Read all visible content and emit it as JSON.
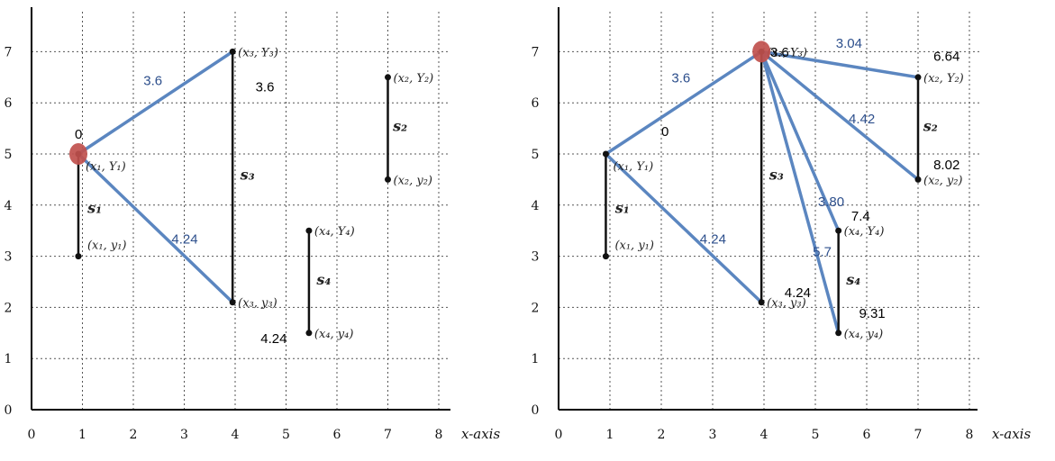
{
  "panels": [
    {
      "id": "left",
      "x_ticks": [
        "0",
        "1",
        "2",
        "3",
        "4",
        "5",
        "6",
        "7",
        "8"
      ],
      "y_ticks": [
        "0",
        "1",
        "2",
        "3",
        "4",
        "5",
        "6",
        "7"
      ],
      "x_axis_label": "x-axis",
      "points": [
        {
          "id": "A",
          "x": 0.92,
          "y": 5,
          "label": "(x₁, Y₁)",
          "label_pos": "right-below"
        },
        {
          "id": "a",
          "x": 0.92,
          "y": 3,
          "label": "(x₁, y₁)",
          "label_pos": "right-above"
        },
        {
          "id": "B",
          "x": 7,
          "y": 6.5,
          "label": "(x₂, Y₂)",
          "label_pos": "right"
        },
        {
          "id": "b",
          "x": 7,
          "y": 4.5,
          "label": "(x₂, y₂)",
          "label_pos": "right"
        },
        {
          "id": "C",
          "x": 3.95,
          "y": 7,
          "label": "(x₃, Y₃)",
          "label_pos": "right"
        },
        {
          "id": "c",
          "x": 3.95,
          "y": 2.1,
          "label": "(x₃, y₃)",
          "label_pos": "right"
        },
        {
          "id": "D",
          "x": 5.45,
          "y": 3.5,
          "label": "(x₄, Y₄)",
          "label_pos": "right"
        },
        {
          "id": "d",
          "x": 5.45,
          "y": 1.5,
          "label": "(x₄, y₄)",
          "label_pos": "right"
        }
      ],
      "segments": [
        {
          "from": "A",
          "to": "a",
          "label": "s1"
        },
        {
          "from": "B",
          "to": "b",
          "label": "s2"
        },
        {
          "from": "C",
          "to": "c",
          "label": "s3"
        },
        {
          "from": "D",
          "to": "d",
          "label": "s4"
        }
      ],
      "segment_labels": [
        {
          "text": "s₁",
          "x": 1.1,
          "y": 3.85
        },
        {
          "text": "s₂",
          "x": 7.1,
          "y": 5.45
        },
        {
          "text": "s₃",
          "x": 4.1,
          "y": 4.5
        },
        {
          "text": "s₄",
          "x": 5.6,
          "y": 2.45
        }
      ],
      "source": "A",
      "edges": [
        {
          "from": "A",
          "to": "C"
        },
        {
          "from": "A",
          "to": "c"
        }
      ],
      "blue_labels": [
        {
          "text": "3.6",
          "x": 2.2,
          "y": 6.35
        },
        {
          "text": "4.24",
          "x": 2.75,
          "y": 3.25
        }
      ],
      "black_labels": [
        {
          "text": "0",
          "x": 0.85,
          "y": 5.3
        },
        {
          "text": "3.6",
          "x": 4.4,
          "y": 6.22
        },
        {
          "text": "4.24",
          "x": 4.5,
          "y": 1.3
        }
      ]
    },
    {
      "id": "right",
      "x_ticks": [
        "0",
        "1",
        "2",
        "3",
        "4",
        "5",
        "6",
        "7",
        "8"
      ],
      "y_ticks": [
        "0",
        "1",
        "2",
        "3",
        "4",
        "5",
        "6",
        "7"
      ],
      "x_axis_label": "x-axis",
      "points": [
        {
          "id": "A",
          "x": 0.92,
          "y": 5,
          "label": "(x₁, Y₁)",
          "label_pos": "right-below"
        },
        {
          "id": "a",
          "x": 0.92,
          "y": 3,
          "label": "(x₁, y₁)",
          "label_pos": "right-above"
        },
        {
          "id": "B",
          "x": 7,
          "y": 6.5,
          "label": "(x₂, Y₂)",
          "label_pos": "right"
        },
        {
          "id": "b",
          "x": 7,
          "y": 4.5,
          "label": "(x₂, y₂)",
          "label_pos": "right"
        },
        {
          "id": "C",
          "x": 3.95,
          "y": 7,
          "label": "(x₃, Y₃)",
          "label_pos": "right"
        },
        {
          "id": "c",
          "x": 3.95,
          "y": 2.1,
          "label": "(x₃, y₃)",
          "label_pos": "right"
        },
        {
          "id": "D",
          "x": 5.45,
          "y": 3.5,
          "label": "(x₄, Y₄)",
          "label_pos": "right"
        },
        {
          "id": "d",
          "x": 5.45,
          "y": 1.5,
          "label": "(x₄, y₄)",
          "label_pos": "right"
        }
      ],
      "segments": [
        {
          "from": "A",
          "to": "a",
          "label": "s1"
        },
        {
          "from": "B",
          "to": "b",
          "label": "s2"
        },
        {
          "from": "C",
          "to": "c",
          "label": "s3"
        },
        {
          "from": "D",
          "to": "d",
          "label": "s4"
        }
      ],
      "segment_labels": [
        {
          "text": "s₁",
          "x": 1.1,
          "y": 3.85
        },
        {
          "text": "s₂",
          "x": 7.1,
          "y": 5.45
        },
        {
          "text": "s₃",
          "x": 4.1,
          "y": 4.5
        },
        {
          "text": "s₄",
          "x": 5.6,
          "y": 2.45
        }
      ],
      "source": "C",
      "edges": [
        {
          "from": "A",
          "to": "C"
        },
        {
          "from": "A",
          "to": "c"
        },
        {
          "from": "C",
          "to": "B"
        },
        {
          "from": "C",
          "to": "b"
        },
        {
          "from": "C",
          "to": "D"
        },
        {
          "from": "C",
          "to": "d"
        }
      ],
      "blue_labels": [
        {
          "text": "3.6",
          "x": 2.2,
          "y": 6.4
        },
        {
          "text": "4.24",
          "x": 2.75,
          "y": 3.25
        },
        {
          "text": "3.04",
          "x": 5.4,
          "y": 7.08
        },
        {
          "text": "4.42",
          "x": 5.65,
          "y": 5.6
        },
        {
          "text": "3.80",
          "x": 5.05,
          "y": 3.98
        },
        {
          "text": "5.7",
          "x": 4.95,
          "y": 3.0
        }
      ],
      "black_labels": [
        {
          "text": "3.6",
          "x": 4.12,
          "y": 6.9
        },
        {
          "text": "6.64",
          "x": 7.3,
          "y": 6.82
        },
        {
          "text": "0",
          "x": 2.0,
          "y": 5.35
        },
        {
          "text": "8.02",
          "x": 7.3,
          "y": 4.7
        },
        {
          "text": "7.4",
          "x": 5.7,
          "y": 3.7
        },
        {
          "text": "4.24",
          "x": 4.4,
          "y": 2.2
        },
        {
          "text": "9.31",
          "x": 5.85,
          "y": 1.8
        }
      ]
    }
  ]
}
